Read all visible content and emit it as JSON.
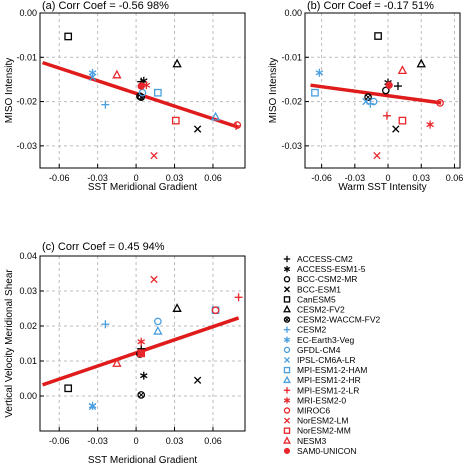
{
  "chart_data": [
    {
      "type": "scatter",
      "panel": "(a)",
      "title": "Corr Coef = -0.56",
      "significance": "98%",
      "xlabel": "SST Meridional Gradient",
      "ylabel": "MISO Intensity",
      "xlim": [
        -0.075,
        0.085
      ],
      "ylim": [
        -0.035,
        0.0
      ],
      "xticks": [
        -0.06,
        -0.03,
        0,
        0.03,
        0.06
      ],
      "xtick_labels": [
        "-0.06",
        "-0.03",
        "0",
        "0.03",
        "0.06"
      ],
      "yticks": [
        0.0,
        -0.01,
        -0.02,
        -0.03
      ],
      "ytick_labels": [
        "0.00",
        "-0.01",
        "-0.02",
        "-0.03"
      ],
      "grid": true,
      "regression": {
        "x": [
          -0.073,
          0.08
        ],
        "y": [
          -0.0112,
          -0.0258
        ]
      },
      "points": [
        {
          "model": "ACCESS-CM2",
          "x": 0.004,
          "y": -0.0155
        },
        {
          "model": "ACCESS-ESM1-5",
          "x": 0.006,
          "y": -0.0153
        },
        {
          "model": "BCC-CSM2-MR",
          "x": 0.003,
          "y": -0.0188
        },
        {
          "model": "BCC-ESM1",
          "x": 0.048,
          "y": -0.0262
        },
        {
          "model": "CanESM5",
          "x": -0.053,
          "y": -0.0053
        },
        {
          "model": "CESM2-FV2",
          "x": 0.032,
          "y": -0.0115
        },
        {
          "model": "CESM2-WACCM-FV2",
          "x": 0.004,
          "y": -0.019
        },
        {
          "model": "CESM2",
          "x": -0.024,
          "y": -0.0207
        },
        {
          "model": "EC-Earth3-Veg",
          "x": -0.034,
          "y": -0.0135
        },
        {
          "model": "GFDL-CM4",
          "x": 0.005,
          "y": -0.018
        },
        {
          "model": "IPSL-CM6A-LR",
          "x": -0.034,
          "y": -0.0145
        },
        {
          "model": "MPI-ESM1-2-HAM",
          "x": 0.017,
          "y": -0.018
        },
        {
          "model": "MPI-ESM1-2-HR",
          "x": 0.062,
          "y": -0.0235
        },
        {
          "model": "MPI-ESM1-2-LR",
          "x": 0.078,
          "y": -0.0255
        },
        {
          "model": "MRI-ESM2-0",
          "x": 0.008,
          "y": -0.0163
        },
        {
          "model": "MIROC6",
          "x": 0.079,
          "y": -0.0253
        },
        {
          "model": "NorESM2-LM",
          "x": 0.014,
          "y": -0.0322
        },
        {
          "model": "NorESM2-MM",
          "x": 0.031,
          "y": -0.0243
        },
        {
          "model": "NESM3",
          "x": -0.015,
          "y": -0.014
        },
        {
          "model": "SAM0-UNICON",
          "x": 0.004,
          "y": -0.0165
        }
      ]
    },
    {
      "type": "scatter",
      "panel": "(b)",
      "title": "Corr Coef = -0.17",
      "significance": "51%",
      "xlabel": "Warm SST Intensity",
      "ylabel": "MISO Intensity",
      "xlim": [
        -0.075,
        0.065
      ],
      "ylim": [
        -0.035,
        0.0
      ],
      "xticks": [
        -0.06,
        -0.03,
        0,
        0.03,
        0.06
      ],
      "xtick_labels": [
        "-0.06",
        "-0.03",
        "0",
        "0.03",
        "0.06"
      ],
      "yticks": [
        0.0,
        -0.01,
        -0.02,
        -0.03
      ],
      "ytick_labels": [
        "0.00",
        "-0.01",
        "-0.02",
        "-0.03"
      ],
      "grid": true,
      "regression": {
        "x": [
          -0.07,
          0.048
        ],
        "y": [
          -0.0163,
          -0.0203
        ]
      },
      "points": [
        {
          "model": "ACCESS-CM2",
          "x": 0.009,
          "y": -0.0165
        },
        {
          "model": "ACCESS-ESM1-5",
          "x": 0.0,
          "y": -0.0157
        },
        {
          "model": "BCC-CSM2-MR",
          "x": -0.002,
          "y": -0.0175
        },
        {
          "model": "BCC-ESM1",
          "x": 0.007,
          "y": -0.0262
        },
        {
          "model": "CanESM5",
          "x": -0.009,
          "y": -0.0052
        },
        {
          "model": "CESM2-FV2",
          "x": 0.03,
          "y": -0.0115
        },
        {
          "model": "CESM2-WACCM-FV2",
          "x": -0.018,
          "y": -0.019
        },
        {
          "model": "CESM2",
          "x": -0.016,
          "y": -0.0205
        },
        {
          "model": "EC-Earth3-Veg",
          "x": -0.062,
          "y": -0.0135
        },
        {
          "model": "GFDL-CM4",
          "x": -0.013,
          "y": -0.02
        },
        {
          "model": "IPSL-CM6A-LR",
          "x": -0.02,
          "y": -0.02
        },
        {
          "model": "MPI-ESM1-2-HAM",
          "x": -0.066,
          "y": -0.018
        },
        {
          "model": "MPI-ESM1-2-LR",
          "x": -0.001,
          "y": -0.0232
        },
        {
          "model": "MRI-ESM2-0",
          "x": 0.038,
          "y": -0.0252
        },
        {
          "model": "MIROC6",
          "x": 0.047,
          "y": -0.0203
        },
        {
          "model": "NorESM2-LM",
          "x": -0.01,
          "y": -0.0322
        },
        {
          "model": "NorESM2-MM",
          "x": 0.013,
          "y": -0.0243
        },
        {
          "model": "NESM3",
          "x": 0.013,
          "y": -0.013
        },
        {
          "model": "SAM0-UNICON",
          "x": 0.001,
          "y": -0.0163
        }
      ]
    },
    {
      "type": "scatter",
      "panel": "(c)",
      "title": "Corr Coef = 0.45",
      "significance": "94%",
      "xlabel": "SST Meridional Gradient",
      "ylabel": "Vertical Velocity Meridional Shear",
      "xlim": [
        -0.075,
        0.085
      ],
      "ylim": [
        -0.01,
        0.04
      ],
      "xticks": [
        -0.06,
        -0.03,
        0,
        0.03,
        0.06
      ],
      "xtick_labels": [
        "-0.06",
        "-0.03",
        "0",
        "0.03",
        "0.06"
      ],
      "yticks": [
        0.04,
        0.03,
        0.02,
        0.01,
        0.0
      ],
      "ytick_labels": [
        "0.04",
        "0.03",
        "0.02",
        "0.01",
        "0.00"
      ],
      "grid": true,
      "regression": {
        "x": [
          -0.073,
          0.08
        ],
        "y": [
          0.0032,
          0.0223
        ]
      },
      "points": [
        {
          "model": "ACCESS-CM2",
          "x": 0.004,
          "y": 0.0135
        },
        {
          "model": "ACCESS-ESM1-5",
          "x": 0.006,
          "y": 0.0058
        },
        {
          "model": "BCC-CSM2-MR",
          "x": 0.003,
          "y": 0.012
        },
        {
          "model": "BCC-ESM1",
          "x": 0.048,
          "y": 0.0045
        },
        {
          "model": "CanESM5",
          "x": -0.053,
          "y": 0.0022
        },
        {
          "model": "CESM2-FV2",
          "x": 0.032,
          "y": 0.025
        },
        {
          "model": "CESM2-WACCM-FV2",
          "x": 0.004,
          "y": 0.0003
        },
        {
          "model": "CESM2",
          "x": -0.024,
          "y": 0.0205
        },
        {
          "model": "EC-Earth3-Veg",
          "x": -0.034,
          "y": -0.0028
        },
        {
          "model": "GFDL-CM4",
          "x": 0.017,
          "y": 0.0213
        },
        {
          "model": "IPSL-CM6A-LR",
          "x": -0.034,
          "y": -0.003
        },
        {
          "model": "MPI-ESM1-2-HAM",
          "x": 0.062,
          "y": 0.0245
        },
        {
          "model": "MPI-ESM1-2-HR",
          "x": 0.017,
          "y": 0.0185
        },
        {
          "model": "MPI-ESM1-2-LR",
          "x": 0.08,
          "y": 0.0282
        },
        {
          "model": "MRI-ESM2-0",
          "x": 0.004,
          "y": 0.0155
        },
        {
          "model": "MIROC6",
          "x": 0.062,
          "y": 0.0245
        },
        {
          "model": "NorESM2-LM",
          "x": 0.014,
          "y": 0.0333
        },
        {
          "model": "NorESM2-MM",
          "x": 0.004,
          "y": 0.0122
        },
        {
          "model": "NESM3",
          "x": -0.015,
          "y": 0.0093
        },
        {
          "model": "SAM0-UNICON",
          "x": 0.004,
          "y": 0.0123
        }
      ]
    }
  ],
  "legend": {
    "items": [
      {
        "model": "ACCESS-CM2",
        "symbol": "plus",
        "color": "#000000"
      },
      {
        "model": "ACCESS-ESM1-5",
        "symbol": "asterisk",
        "color": "#000000"
      },
      {
        "model": "BCC-CSM2-MR",
        "symbol": "circle",
        "color": "#000000"
      },
      {
        "model": "BCC-ESM1",
        "symbol": "cross",
        "color": "#000000"
      },
      {
        "model": "CanESM5",
        "symbol": "square",
        "color": "#000000"
      },
      {
        "model": "CESM2-FV2",
        "symbol": "triangle",
        "color": "#000000"
      },
      {
        "model": "CESM2-WACCM-FV2",
        "symbol": "circlex",
        "color": "#000000"
      },
      {
        "model": "CESM2",
        "symbol": "plus",
        "color": "#4a9fe0"
      },
      {
        "model": "EC-Earth3-Veg",
        "symbol": "asterisk",
        "color": "#4a9fe0"
      },
      {
        "model": "GFDL-CM4",
        "symbol": "circle",
        "color": "#4a9fe0"
      },
      {
        "model": "IPSL-CM6A-LR",
        "symbol": "cross",
        "color": "#4a9fe0"
      },
      {
        "model": "MPI-ESM1-2-HAM",
        "symbol": "square",
        "color": "#4a9fe0"
      },
      {
        "model": "MPI-ESM1-2-HR",
        "symbol": "triangle",
        "color": "#4a9fe0"
      },
      {
        "model": "MPI-ESM1-2-LR",
        "symbol": "plus",
        "color": "#e8262b"
      },
      {
        "model": "MRI-ESM2-0",
        "symbol": "asterisk",
        "color": "#e8262b"
      },
      {
        "model": "MIROC6",
        "symbol": "circle",
        "color": "#e8262b"
      },
      {
        "model": "NorESM2-LM",
        "symbol": "cross",
        "color": "#e8262b"
      },
      {
        "model": "NorESM2-MM",
        "symbol": "square",
        "color": "#e8262b"
      },
      {
        "model": "NESM3",
        "symbol": "triangle",
        "color": "#e8262b"
      },
      {
        "model": "SAM0-UNICON",
        "symbol": "circlefill",
        "color": "#e8262b"
      }
    ]
  },
  "colors": {
    "regression": "#e01b1b",
    "grid": "#bdbdbd",
    "axis": "#000000"
  }
}
